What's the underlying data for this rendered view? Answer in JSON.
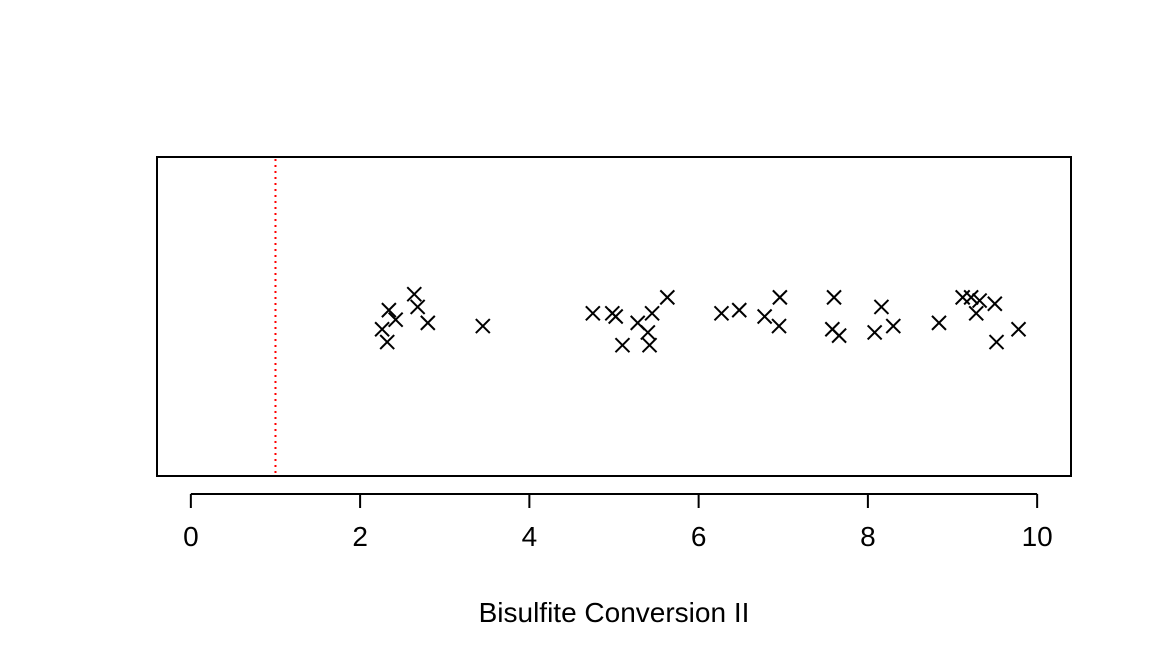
{
  "chart_data": {
    "type": "scatter",
    "title": "",
    "xlabel": "Bisulfite Conversion II",
    "ylabel": "",
    "xlim": [
      -0.4,
      10.4
    ],
    "ylim": [
      0,
      1
    ],
    "xticks": [
      0,
      2,
      4,
      6,
      8,
      10
    ],
    "xtick_labels": [
      "0",
      "2",
      "4",
      "6",
      "8",
      "10"
    ],
    "grid": false,
    "marker": "x",
    "marker_color": "#000000",
    "reference_line": {
      "x": 1,
      "color": "#ff0000",
      "style": "dotted"
    },
    "points": [
      {
        "x": 2.26,
        "y": 0.46
      },
      {
        "x": 2.32,
        "y": 0.42
      },
      {
        "x": 2.34,
        "y": 0.52
      },
      {
        "x": 2.42,
        "y": 0.49
      },
      {
        "x": 2.64,
        "y": 0.57
      },
      {
        "x": 2.68,
        "y": 0.53
      },
      {
        "x": 2.8,
        "y": 0.48
      },
      {
        "x": 3.45,
        "y": 0.47
      },
      {
        "x": 4.75,
        "y": 0.51
      },
      {
        "x": 4.98,
        "y": 0.51
      },
      {
        "x": 5.02,
        "y": 0.5
      },
      {
        "x": 5.1,
        "y": 0.41
      },
      {
        "x": 5.28,
        "y": 0.48
      },
      {
        "x": 5.4,
        "y": 0.45
      },
      {
        "x": 5.42,
        "y": 0.41
      },
      {
        "x": 5.45,
        "y": 0.51
      },
      {
        "x": 5.63,
        "y": 0.56
      },
      {
        "x": 6.27,
        "y": 0.51
      },
      {
        "x": 6.48,
        "y": 0.52
      },
      {
        "x": 6.78,
        "y": 0.5
      },
      {
        "x": 6.95,
        "y": 0.47
      },
      {
        "x": 6.96,
        "y": 0.56
      },
      {
        "x": 7.58,
        "y": 0.46
      },
      {
        "x": 7.6,
        "y": 0.56
      },
      {
        "x": 7.66,
        "y": 0.44
      },
      {
        "x": 8.08,
        "y": 0.45
      },
      {
        "x": 8.16,
        "y": 0.53
      },
      {
        "x": 8.3,
        "y": 0.47
      },
      {
        "x": 8.84,
        "y": 0.48
      },
      {
        "x": 9.12,
        "y": 0.56
      },
      {
        "x": 9.22,
        "y": 0.56
      },
      {
        "x": 9.28,
        "y": 0.51
      },
      {
        "x": 9.32,
        "y": 0.55
      },
      {
        "x": 9.5,
        "y": 0.54
      },
      {
        "x": 9.52,
        "y": 0.42
      },
      {
        "x": 9.78,
        "y": 0.46
      }
    ]
  }
}
